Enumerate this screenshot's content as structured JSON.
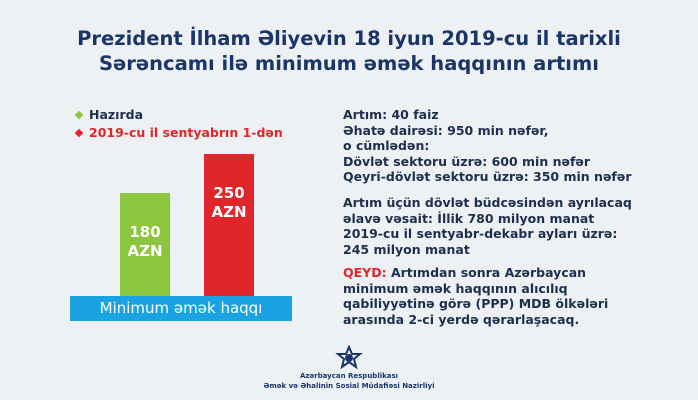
{
  "header": {
    "title": [
      "Prezident İlham Əliyevin 18 iyun 2019-cu il tarixli",
      "Sərəncamı ilə minimum əmək haqqının artımı"
    ]
  },
  "chart_data": {
    "type": "bar",
    "categories": [
      "Minimum əmək haqqı"
    ],
    "series": [
      {
        "name": "Hazırda",
        "color": "#8cc63f",
        "values": [
          180
        ],
        "value_labels": [
          "180 AZN"
        ]
      },
      {
        "name": "2019-cu il sentyabrın 1-dən",
        "color": "#e0262b",
        "values": [
          250
        ],
        "value_labels": [
          "250 AZN"
        ]
      }
    ]
  },
  "info": [
    {
      "lines": [
        "Artım: 40 faiz",
        "Əhatə dairəsi: 950 min nəfər,",
        "o cümlədən:",
        "Dövlət sektoru üzrə: 600 min nəfər",
        "Qeyri-dövlət sektoru üzrə: 350 min nəfər"
      ]
    },
    {
      "lines": [
        "Artım üçün dövlət büdcəsindən ayrılacaq",
        "əlavə vəsait: İllik 780 milyon manat",
        "2019-cu il sentyabr-dekabr ayları üzrə:",
        "245 milyon manat"
      ]
    },
    {
      "note_label": "QEYD:",
      "lines": [
        " Artımdan sonra Azərbaycan",
        "minimum əmək haqqının alıcılıq",
        "qabiliyyətinə görə (PPP) MDB ölkələri",
        "arasında 2-ci yerdə qərarlaşacaq."
      ]
    }
  ],
  "footer": [
    "Azərbaycan Respublikası",
    "Əmək və Əhalinin Sosial Müdafiəsi Nazirliyi"
  ]
}
